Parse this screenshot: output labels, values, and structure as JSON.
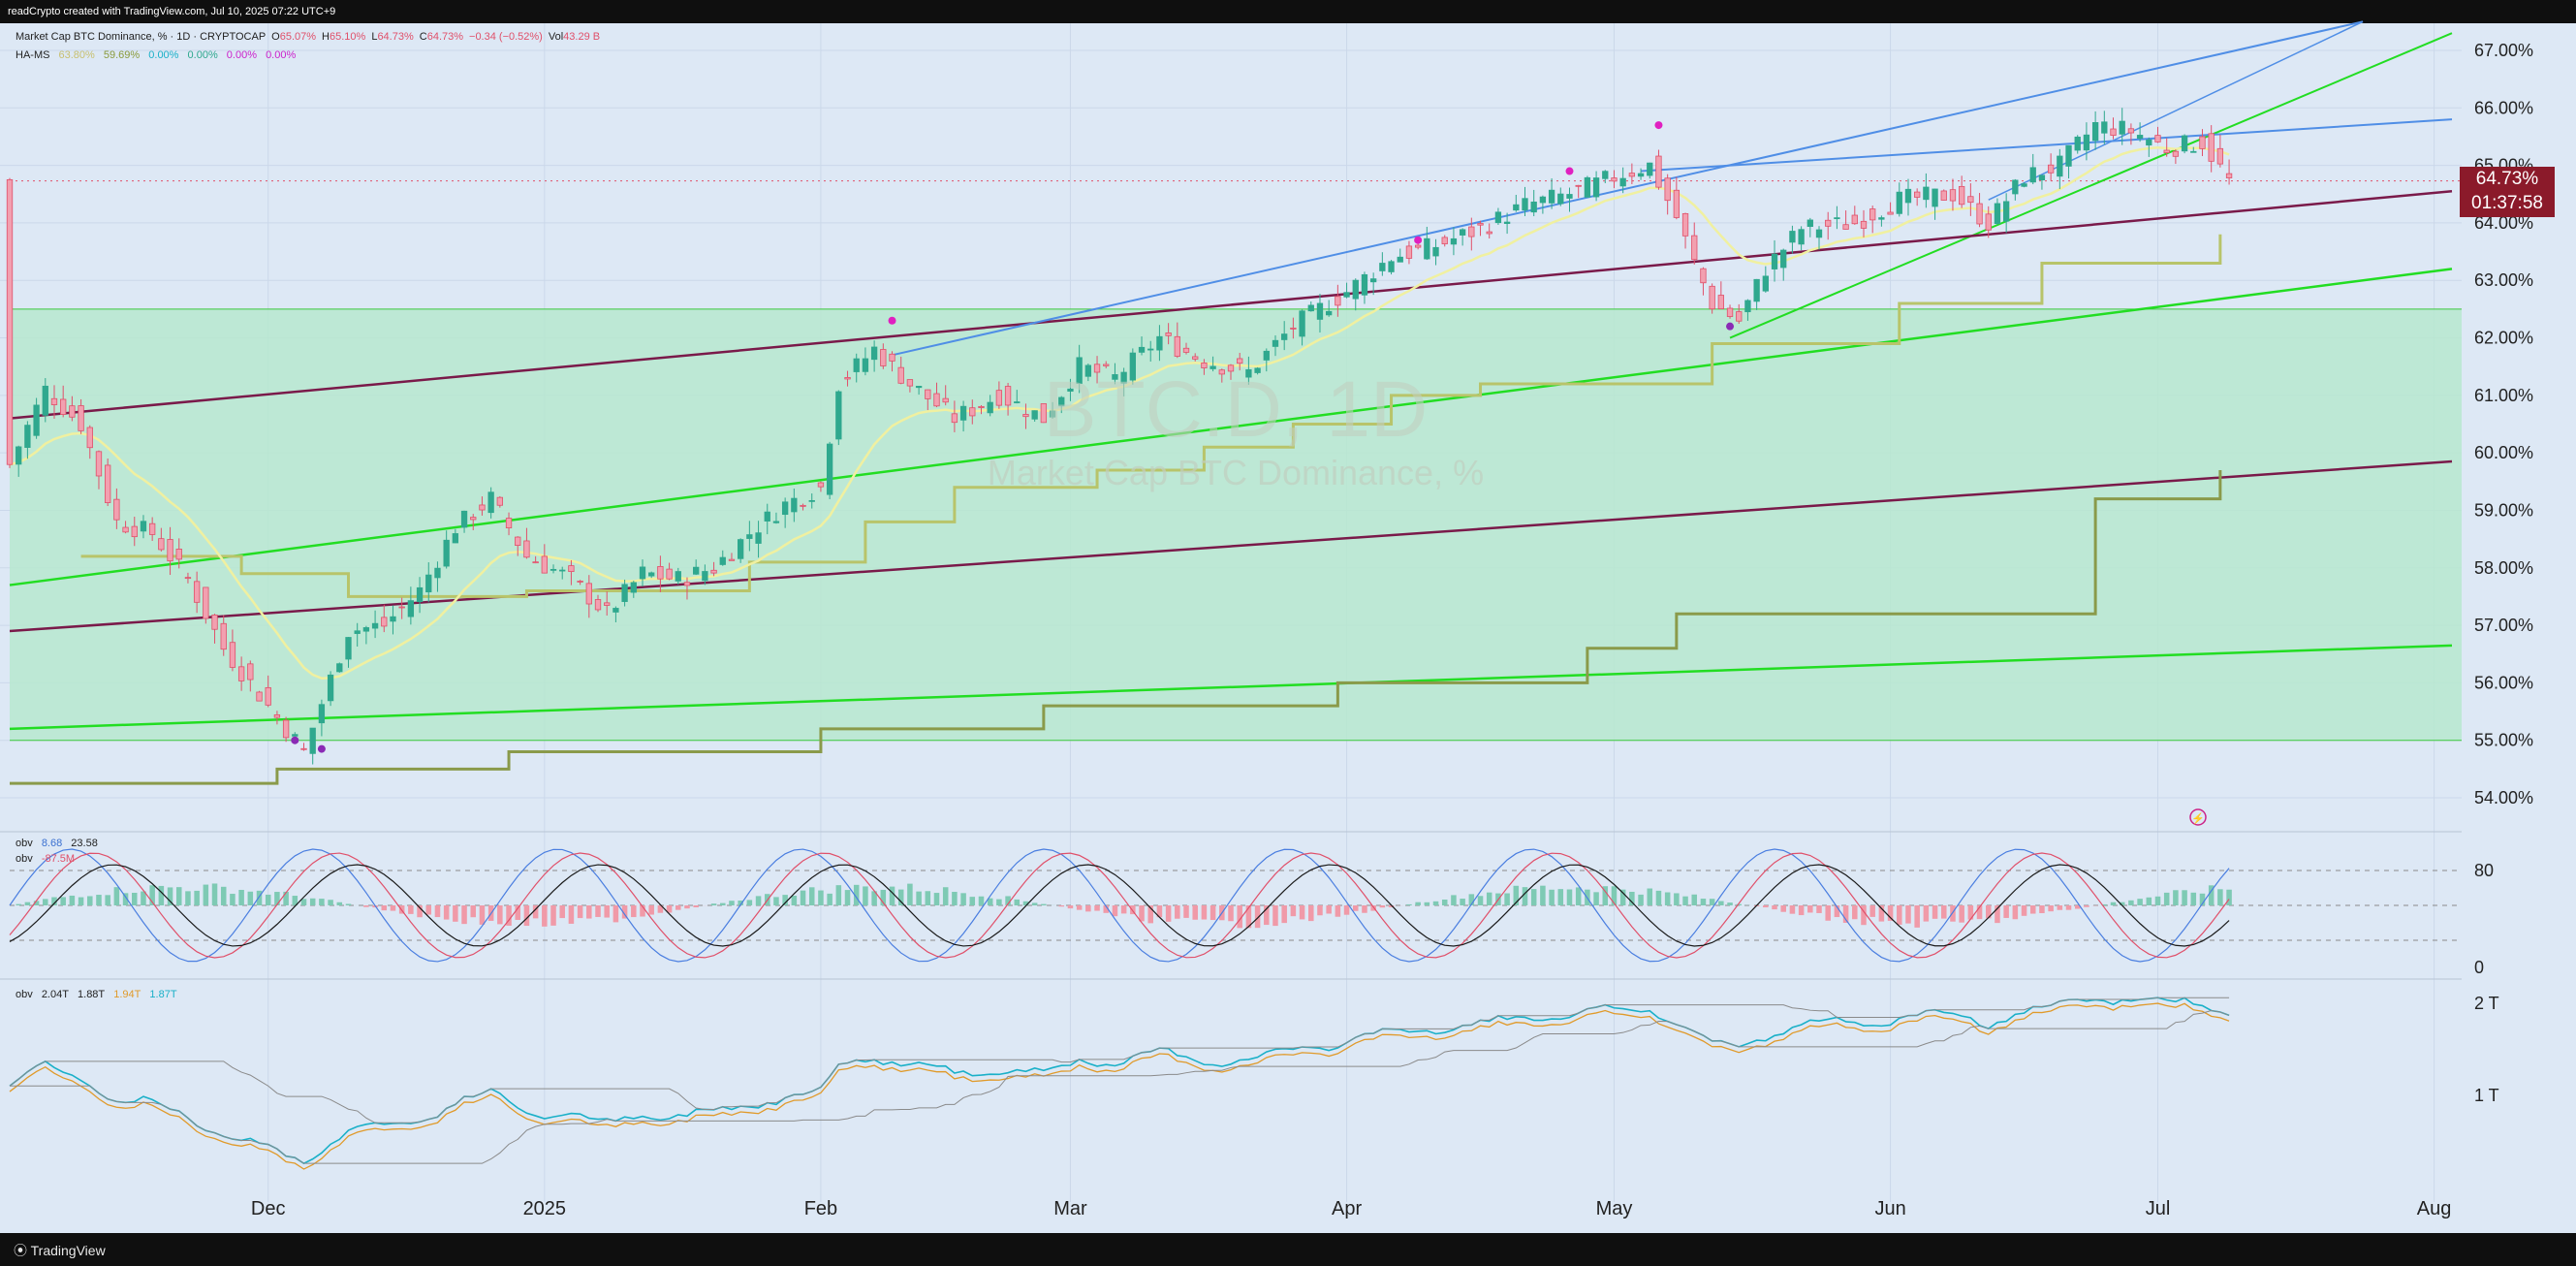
{
  "header": {
    "attribution": "readCrypto created with TradingView.com, Jul 10, 2025 07:22 UTC+9",
    "symbol": "Market Cap BTC Dominance, % · 1D · CRYPTOCAP",
    "o_label": "O",
    "o": "65.07%",
    "h_label": "H",
    "h": "65.10%",
    "l_label": "L",
    "l": "64.73%",
    "c_label": "C",
    "c": "64.73%",
    "chg": "−0.34 (−0.52%)",
    "vol_label": "Vol",
    "vol": "43.29 B",
    "ind_name": "HA-MS",
    "ind_v1": "63.80%",
    "ind_v2": "59.69%",
    "ind_v3": "0.00%",
    "ind_v4": "0.00%",
    "ind_v5": "0.00%",
    "ind_v6": "0.00%"
  },
  "watermark": {
    "ticker": "BTC.D, 1D",
    "name": "Market Cap BTC Dominance, %"
  },
  "price_box": {
    "price": "64.73%",
    "countdown": "01:37:58"
  },
  "pane2_legend": {
    "n1": "obv",
    "v1": "8.68",
    "v2": "23.58",
    "n2": "obv",
    "v3": "-87.5M"
  },
  "pane3_legend": {
    "n1": "obv",
    "v1": "2.04T",
    "v2": "1.88T",
    "v3": "1.94T",
    "v4": "1.87T"
  },
  "pane2_ticks": [
    "80",
    "0"
  ],
  "pane3_ticks": [
    "2 T",
    "1 T"
  ],
  "footer": {
    "logo": "TradingView"
  },
  "colors": {
    "bg": "#dde8f5",
    "green_zone": "#b7e8cf",
    "up": "#2fa88e",
    "down": "#e0506a",
    "channel_green": "#22dd22",
    "channel_maroon": "#7a1a4a",
    "trend_blue": "#4f8ee6",
    "stair": "#b8c46a",
    "stair_dark": "#8a9a4a",
    "ema": "#f0f0a0",
    "price_label": "#8b1a2a"
  },
  "chart_data": {
    "type": "candlestick",
    "title": "BTC.D, 1D",
    "y_unit": "%",
    "y_ticks": [
      54,
      55,
      56,
      57,
      58,
      59,
      60,
      61,
      62,
      63,
      64,
      65,
      66,
      67
    ],
    "y_tick_labels": [
      "54.00%",
      "55.00%",
      "56.00%",
      "57.00%",
      "58.00%",
      "59.00%",
      "60.00%",
      "61.00%",
      "62.00%",
      "63.00%",
      "64.00%",
      "65.00%",
      "66.00%",
      "67.00%"
    ],
    "ylim": [
      53.5,
      67.5
    ],
    "x_labels": [
      "Dec",
      "2025",
      "Feb",
      "Mar",
      "Apr",
      "May",
      "Jun",
      "Jul",
      "Aug"
    ],
    "x_label_dates": [
      "2024-12-01",
      "2025-01-01",
      "2025-02-01",
      "2025-03-01",
      "2025-04-01",
      "2025-05-01",
      "2025-06-01",
      "2025-07-01",
      "2025-08-01"
    ],
    "x_range": [
      "2024-11-02",
      "2025-08-03"
    ],
    "series_anchors": [
      [
        "2024-11-02",
        59.8
      ],
      [
        "2024-11-06",
        61.1
      ],
      [
        "2024-11-10",
        60.5
      ],
      [
        "2024-11-14",
        58.8
      ],
      [
        "2024-11-18",
        58.6
      ],
      [
        "2024-11-22",
        57.8
      ],
      [
        "2024-11-26",
        56.6
      ],
      [
        "2024-12-01",
        55.6
      ],
      [
        "2024-12-05",
        54.8
      ],
      [
        "2024-12-10",
        56.9
      ],
      [
        "2024-12-14",
        57.0
      ],
      [
        "2024-12-18",
        57.6
      ],
      [
        "2024-12-22",
        58.7
      ],
      [
        "2024-12-26",
        59.2
      ],
      [
        "2024-12-30",
        58.2
      ],
      [
        "2025-01-04",
        57.8
      ],
      [
        "2025-01-08",
        57.2
      ],
      [
        "2025-01-12",
        57.9
      ],
      [
        "2025-01-16",
        57.8
      ],
      [
        "2025-01-20",
        58.0
      ],
      [
        "2025-01-24",
        58.6
      ],
      [
        "2025-01-28",
        59.1
      ],
      [
        "2025-02-01",
        59.4
      ],
      [
        "2025-02-03",
        61.2
      ],
      [
        "2025-02-07",
        61.8
      ],
      [
        "2025-02-11",
        61.2
      ],
      [
        "2025-02-16",
        60.6
      ],
      [
        "2025-02-21",
        61.0
      ],
      [
        "2025-02-26",
        60.6
      ],
      [
        "2025-03-02",
        61.5
      ],
      [
        "2025-03-06",
        61.3
      ],
      [
        "2025-03-11",
        62.0
      ],
      [
        "2025-03-16",
        61.6
      ],
      [
        "2025-03-21",
        61.4
      ],
      [
        "2025-03-26",
        62.2
      ],
      [
        "2025-04-01",
        62.8
      ],
      [
        "2025-04-06",
        63.4
      ],
      [
        "2025-04-11",
        63.6
      ],
      [
        "2025-04-16",
        63.9
      ],
      [
        "2025-04-21",
        64.3
      ],
      [
        "2025-04-26",
        64.5
      ],
      [
        "2025-05-01",
        64.8
      ],
      [
        "2025-05-05",
        65.0
      ],
      [
        "2025-05-08",
        64.1
      ],
      [
        "2025-05-10",
        63.3
      ],
      [
        "2025-05-12",
        62.6
      ],
      [
        "2025-05-15",
        62.3
      ],
      [
        "2025-05-18",
        63.2
      ],
      [
        "2025-05-22",
        63.9
      ],
      [
        "2025-05-28",
        64.0
      ],
      [
        "2025-06-02",
        64.4
      ],
      [
        "2025-06-08",
        64.5
      ],
      [
        "2025-06-12",
        64.0
      ],
      [
        "2025-06-16",
        64.8
      ],
      [
        "2025-06-20",
        65.0
      ],
      [
        "2025-06-24",
        65.7
      ],
      [
        "2025-06-28",
        65.6
      ],
      [
        "2025-07-02",
        65.3
      ],
      [
        "2025-07-06",
        65.4
      ],
      [
        "2025-07-09",
        64.73
      ]
    ],
    "horizontal_lines": [
      {
        "y": 55.0
      },
      {
        "y": 62.5
      }
    ],
    "shaded_band": [
      55.0,
      62.5
    ],
    "last_price_line": 64.73
  }
}
